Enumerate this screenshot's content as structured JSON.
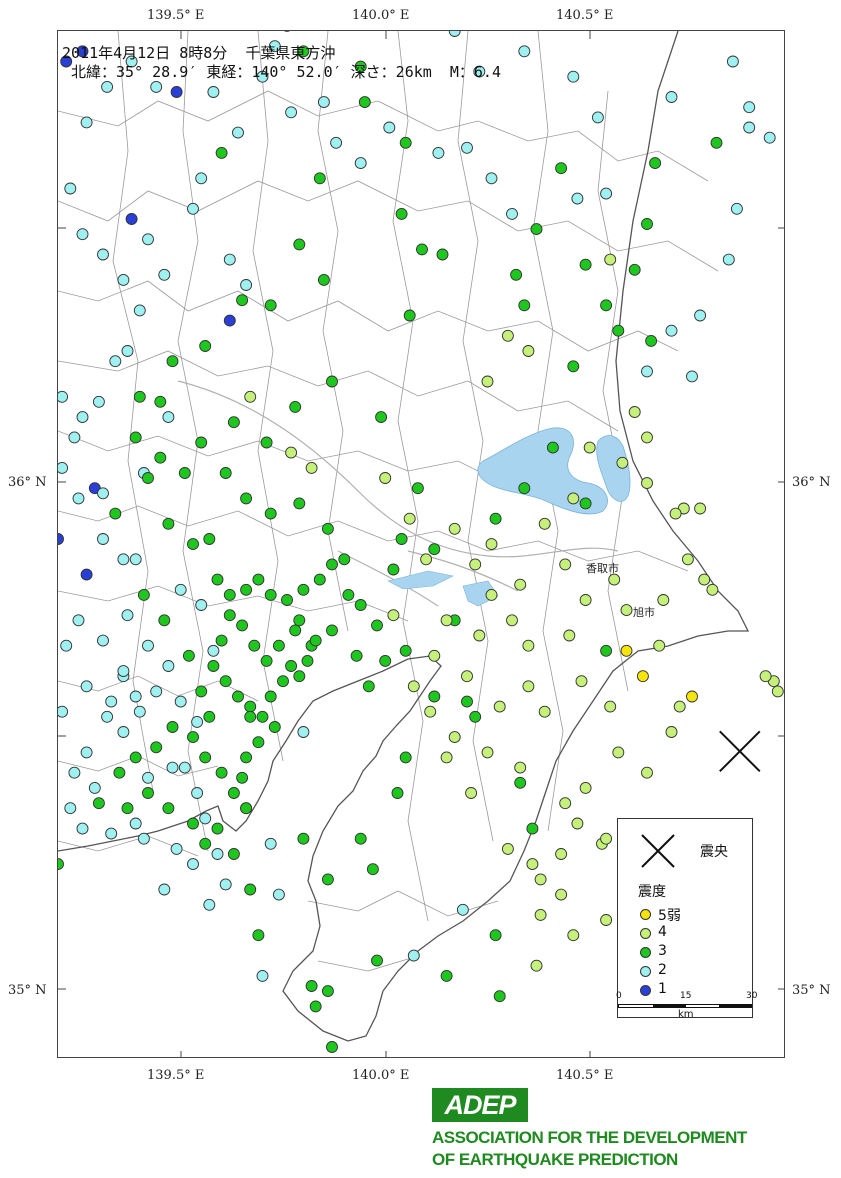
{
  "header": {
    "line1": "2011年4月12日 8時8分  千葉県東方沖",
    "line2": " 北緯：35° 28.9′ 東経：140° 52.0′ 深さ：26km  M：6.4"
  },
  "axes": {
    "top_lon": [
      "139.5° E",
      "140.0° E",
      "140.5° E"
    ],
    "bottom_lon": [
      "139.5° E",
      "140.0° E",
      "140.5° E"
    ],
    "left_lat": [
      "36° N",
      "35° N"
    ],
    "right_lat": [
      "36° N",
      "35° N"
    ]
  },
  "places": [
    "香取市",
    "旭市"
  ],
  "legend": {
    "epicenter_label": "震央",
    "intensity_title": "震度",
    "items": [
      {
        "label": "5弱",
        "color": "#f5e50a"
      },
      {
        "label": "4",
        "color": "#c5f07a"
      },
      {
        "label": "3",
        "color": "#1ec71e"
      },
      {
        "label": "2",
        "color": "#9ff0f0"
      },
      {
        "label": "1",
        "color": "#2a3fd6"
      }
    ],
    "scale_ticks": [
      "0",
      "15",
      "30"
    ],
    "scale_unit": "km"
  },
  "footer": {
    "logo": "ADEP",
    "line1": "ASSOCIATION  FOR THE DEVELOPMENT",
    "line2": "OF EARTHQUAKE PREDICTION"
  },
  "colors": {
    "shindo_5_lower": "#f5e50a",
    "shindo_4": "#c5f07a",
    "shindo_3": "#1ec71e",
    "shindo_2": "#9ff0f0",
    "shindo_1": "#2a3fd6",
    "lake": "#a8d4f0",
    "brand": "#1f8a1f"
  },
  "epicenter": {
    "lon": 140.867,
    "lat": 35.482
  },
  "stations": {
    "5-": [
      [
        140.63,
        35.63
      ],
      [
        140.59,
        35.68
      ],
      [
        140.75,
        35.59
      ]
    ],
    "4": [
      [
        140.3,
        36.3
      ],
      [
        140.25,
        36.21
      ],
      [
        140.35,
        36.27
      ],
      [
        140.55,
        36.45
      ],
      [
        140.61,
        36.15
      ],
      [
        140.64,
        36.1
      ],
      [
        140.73,
        35.96
      ],
      [
        140.77,
        35.96
      ],
      [
        140.8,
        35.8
      ],
      [
        140.78,
        35.82
      ],
      [
        140.74,
        35.86
      ],
      [
        140.71,
        35.95
      ],
      [
        140.95,
        35.62
      ],
      [
        140.96,
        35.6
      ],
      [
        140.93,
        35.63
      ],
      [
        140.45,
        35.71
      ],
      [
        140.48,
        35.62
      ],
      [
        140.55,
        35.57
      ],
      [
        140.57,
        35.48
      ],
      [
        140.49,
        35.41
      ],
      [
        140.44,
        35.38
      ],
      [
        140.53,
        35.3
      ],
      [
        140.54,
        35.15
      ],
      [
        140.46,
        35.12
      ],
      [
        140.38,
        35.16
      ],
      [
        140.3,
        35.29
      ],
      [
        140.21,
        35.4
      ],
      [
        140.17,
        35.51
      ],
      [
        140.11,
        35.56
      ],
      [
        140.07,
        35.61
      ],
      [
        140.02,
        35.75
      ],
      [
        140.1,
        35.86
      ],
      [
        140.17,
        35.92
      ],
      [
        140.22,
        35.85
      ],
      [
        140.26,
        35.79
      ],
      [
        140.31,
        35.74
      ],
      [
        140.35,
        35.69
      ],
      [
        140.35,
        35.61
      ],
      [
        140.39,
        35.56
      ],
      [
        140.28,
        35.57
      ],
      [
        140.2,
        35.63
      ],
      [
        140.12,
        35.67
      ],
      [
        140.15,
        35.74
      ],
      [
        140.23,
        35.71
      ],
      [
        140.44,
        35.85
      ],
      [
        140.39,
        35.93
      ],
      [
        140.46,
        35.98
      ],
      [
        140.5,
        36.08
      ],
      [
        140.58,
        36.05
      ],
      [
        140.64,
        36.01
      ],
      [
        140.68,
        35.78
      ],
      [
        140.59,
        35.76
      ],
      [
        140.56,
        35.82
      ],
      [
        140.49,
        35.78
      ],
      [
        140.33,
        35.81
      ],
      [
        140.26,
        35.89
      ],
      [
        140.06,
        35.94
      ],
      [
        140.0,
        36.02
      ],
      [
        139.82,
        36.04
      ],
      [
        139.77,
        36.07
      ],
      [
        139.67,
        36.18
      ],
      [
        140.33,
        35.45
      ],
      [
        140.25,
        35.48
      ],
      [
        140.15,
        35.47
      ],
      [
        140.36,
        35.26
      ],
      [
        140.43,
        35.2
      ],
      [
        140.37,
        35.06
      ],
      [
        140.38,
        35.23
      ],
      [
        140.43,
        35.28
      ],
      [
        140.47,
        35.34
      ],
      [
        140.54,
        35.31
      ],
      [
        140.67,
        35.69
      ],
      [
        140.7,
        35.52
      ],
      [
        140.72,
        35.57
      ],
      [
        140.64,
        35.44
      ]
    ],
    "3": [
      [
        139.6,
        36.66
      ],
      [
        139.8,
        36.86
      ],
      [
        139.76,
        36.91
      ],
      [
        139.84,
        36.61
      ],
      [
        139.94,
        36.83
      ],
      [
        139.95,
        36.76
      ],
      [
        140.05,
        36.68
      ],
      [
        140.04,
        36.54
      ],
      [
        140.06,
        36.34
      ],
      [
        140.09,
        36.47
      ],
      [
        140.14,
        36.46
      ],
      [
        140.32,
        36.42
      ],
      [
        140.34,
        36.36
      ],
      [
        140.37,
        36.51
      ],
      [
        140.43,
        36.63
      ],
      [
        140.49,
        36.44
      ],
      [
        140.54,
        36.36
      ],
      [
        140.64,
        36.52
      ],
      [
        140.66,
        36.64
      ],
      [
        140.81,
        36.68
      ],
      [
        140.65,
        36.29
      ],
      [
        139.65,
        36.37
      ],
      [
        139.79,
        36.48
      ],
      [
        139.85,
        36.41
      ],
      [
        139.72,
        36.36
      ],
      [
        139.56,
        36.28
      ],
      [
        139.48,
        36.25
      ],
      [
        139.45,
        36.17
      ],
      [
        139.39,
        36.1
      ],
      [
        139.42,
        36.02
      ],
      [
        139.47,
        35.93
      ],
      [
        139.53,
        35.89
      ],
      [
        139.59,
        35.82
      ],
      [
        139.57,
        35.9
      ],
      [
        139.61,
        36.03
      ],
      [
        139.66,
        35.98
      ],
      [
        139.72,
        35.95
      ],
      [
        139.79,
        35.97
      ],
      [
        139.86,
        35.92
      ],
      [
        139.87,
        35.85
      ],
      [
        139.91,
        35.79
      ],
      [
        139.94,
        35.77
      ],
      [
        139.98,
        35.73
      ],
      [
        140.0,
        35.66
      ],
      [
        140.05,
        35.68
      ],
      [
        139.96,
        35.61
      ],
      [
        139.93,
        35.67
      ],
      [
        139.87,
        35.72
      ],
      [
        139.82,
        35.69
      ],
      [
        139.78,
        35.72
      ],
      [
        139.74,
        35.69
      ],
      [
        139.71,
        35.66
      ],
      [
        139.68,
        35.69
      ],
      [
        139.65,
        35.73
      ],
      [
        139.62,
        35.75
      ],
      [
        139.6,
        35.7
      ],
      [
        139.58,
        35.65
      ],
      [
        139.61,
        35.62
      ],
      [
        139.64,
        35.59
      ],
      [
        139.67,
        35.57
      ],
      [
        139.7,
        35.55
      ],
      [
        139.72,
        35.59
      ],
      [
        139.75,
        35.62
      ],
      [
        139.77,
        35.65
      ],
      [
        139.79,
        35.63
      ],
      [
        139.81,
        35.66
      ],
      [
        139.83,
        35.7
      ],
      [
        139.79,
        35.74
      ],
      [
        139.76,
        35.78
      ],
      [
        139.72,
        35.79
      ],
      [
        139.69,
        35.82
      ],
      [
        139.66,
        35.8
      ],
      [
        139.62,
        35.79
      ],
      [
        139.73,
        35.53
      ],
      [
        139.69,
        35.5
      ],
      [
        139.66,
        35.47
      ],
      [
        139.65,
        35.43
      ],
      [
        139.63,
        35.4
      ],
      [
        139.66,
        35.37
      ],
      [
        139.6,
        35.44
      ],
      [
        139.56,
        35.47
      ],
      [
        139.53,
        35.51
      ],
      [
        139.48,
        35.53
      ],
      [
        139.44,
        35.49
      ],
      [
        139.39,
        35.47
      ],
      [
        139.35,
        35.44
      ],
      [
        139.3,
        35.38
      ],
      [
        139.2,
        35.26
      ],
      [
        139.37,
        35.37
      ],
      [
        139.42,
        35.4
      ],
      [
        139.47,
        35.37
      ],
      [
        139.53,
        35.34
      ],
      [
        139.56,
        35.3
      ],
      [
        139.59,
        35.33
      ],
      [
        139.63,
        35.28
      ],
      [
        139.67,
        35.21
      ],
      [
        139.69,
        35.12
      ],
      [
        139.8,
        35.31
      ],
      [
        139.86,
        35.23
      ],
      [
        139.82,
        35.02
      ],
      [
        139.83,
        34.98
      ],
      [
        139.86,
        35.01
      ],
      [
        139.87,
        34.9
      ],
      [
        139.97,
        35.25
      ],
      [
        139.94,
        35.31
      ],
      [
        140.03,
        35.4
      ],
      [
        140.05,
        35.47
      ],
      [
        140.12,
        35.59
      ],
      [
        140.17,
        35.74
      ],
      [
        140.04,
        35.9
      ],
      [
        140.08,
        36.0
      ],
      [
        139.99,
        36.14
      ],
      [
        139.87,
        36.21
      ],
      [
        139.78,
        36.16
      ],
      [
        139.71,
        36.09
      ],
      [
        139.63,
        36.13
      ],
      [
        139.55,
        36.09
      ],
      [
        139.51,
        36.03
      ],
      [
        139.45,
        36.06
      ],
      [
        139.4,
        36.18
      ],
      [
        139.34,
        35.95
      ],
      [
        139.41,
        35.79
      ],
      [
        139.46,
        35.74
      ],
      [
        139.52,
        35.67
      ],
      [
        139.55,
        35.6
      ],
      [
        139.57,
        35.55
      ],
      [
        139.67,
        35.55
      ],
      [
        139.8,
        35.8
      ],
      [
        139.84,
        35.82
      ],
      [
        139.9,
        35.86
      ],
      [
        140.02,
        35.84
      ],
      [
        140.12,
        35.88
      ],
      [
        140.27,
        35.94
      ],
      [
        140.34,
        36.0
      ],
      [
        140.41,
        36.08
      ],
      [
        140.46,
        36.24
      ],
      [
        140.57,
        36.31
      ],
      [
        140.61,
        36.43
      ],
      [
        140.36,
        35.33
      ],
      [
        140.33,
        35.42
      ],
      [
        140.2,
        35.58
      ],
      [
        140.22,
        35.55
      ],
      [
        140.49,
        35.97
      ],
      [
        140.54,
        35.68
      ],
      [
        140.68,
        35.23
      ],
      [
        140.27,
        35.12
      ],
      [
        140.28,
        35.0
      ],
      [
        140.15,
        35.04
      ],
      [
        139.98,
        35.07
      ]
    ],
    "2": [
      [
        139.58,
        36.78
      ],
      [
        139.73,
        36.87
      ],
      [
        139.85,
        36.76
      ],
      [
        140.01,
        36.71
      ],
      [
        140.17,
        36.9
      ],
      [
        140.23,
        36.82
      ],
      [
        140.34,
        36.86
      ],
      [
        140.46,
        36.81
      ],
      [
        140.52,
        36.73
      ],
      [
        140.7,
        36.77
      ],
      [
        140.85,
        36.84
      ],
      [
        140.89,
        36.71
      ],
      [
        140.94,
        36.69
      ],
      [
        139.44,
        36.79
      ],
      [
        139.38,
        36.84
      ],
      [
        139.32,
        36.79
      ],
      [
        139.27,
        36.72
      ],
      [
        139.23,
        36.59
      ],
      [
        139.26,
        36.5
      ],
      [
        139.31,
        36.46
      ],
      [
        139.36,
        36.41
      ],
      [
        139.42,
        36.49
      ],
      [
        139.53,
        36.55
      ],
      [
        139.62,
        36.45
      ],
      [
        139.66,
        36.4
      ],
      [
        139.37,
        36.27
      ],
      [
        139.3,
        36.17
      ],
      [
        139.24,
        36.1
      ],
      [
        139.25,
        35.98
      ],
      [
        139.31,
        35.9
      ],
      [
        139.36,
        35.86
      ],
      [
        139.37,
        35.75
      ],
      [
        139.31,
        35.7
      ],
      [
        139.25,
        35.74
      ],
      [
        139.22,
        35.69
      ],
      [
        139.27,
        35.61
      ],
      [
        139.33,
        35.58
      ],
      [
        139.36,
        35.52
      ],
      [
        139.4,
        35.56
      ],
      [
        139.44,
        35.6
      ],
      [
        139.47,
        35.65
      ],
      [
        139.5,
        35.58
      ],
      [
        139.48,
        35.45
      ],
      [
        139.42,
        35.43
      ],
      [
        139.39,
        35.34
      ],
      [
        139.33,
        35.32
      ],
      [
        139.26,
        35.33
      ],
      [
        139.23,
        35.37
      ],
      [
        139.24,
        35.44
      ],
      [
        139.27,
        35.48
      ],
      [
        139.32,
        35.55
      ],
      [
        139.36,
        35.63
      ],
      [
        139.42,
        35.69
      ],
      [
        139.5,
        35.8
      ],
      [
        139.55,
        35.77
      ],
      [
        139.58,
        35.68
      ],
      [
        139.54,
        35.54
      ],
      [
        139.51,
        35.45
      ],
      [
        139.54,
        35.4
      ],
      [
        139.56,
        35.35
      ],
      [
        139.59,
        35.28
      ],
      [
        139.53,
        35.26
      ],
      [
        139.49,
        35.29
      ],
      [
        139.61,
        35.22
      ],
      [
        139.7,
        35.04
      ],
      [
        139.66,
        35.37
      ],
      [
        139.57,
        35.18
      ],
      [
        139.46,
        35.21
      ],
      [
        139.41,
        35.31
      ],
      [
        139.29,
        35.41
      ],
      [
        139.39,
        35.86
      ],
      [
        139.31,
        35.99
      ],
      [
        139.21,
        36.04
      ],
      [
        139.26,
        36.14
      ],
      [
        139.21,
        36.18
      ],
      [
        139.34,
        36.25
      ],
      [
        139.4,
        36.35
      ],
      [
        139.46,
        36.42
      ],
      [
        139.55,
        36.61
      ],
      [
        139.64,
        36.7
      ],
      [
        139.7,
        36.81
      ],
      [
        139.77,
        36.74
      ],
      [
        139.88,
        36.68
      ],
      [
        139.94,
        36.64
      ],
      [
        140.13,
        36.66
      ],
      [
        140.2,
        36.67
      ],
      [
        140.26,
        36.61
      ],
      [
        140.31,
        36.54
      ],
      [
        140.47,
        36.57
      ],
      [
        140.54,
        36.58
      ],
      [
        140.89,
        36.75
      ],
      [
        140.86,
        36.55
      ],
      [
        140.84,
        36.45
      ],
      [
        140.77,
        36.34
      ],
      [
        140.75,
        36.22
      ],
      [
        140.64,
        36.23
      ],
      [
        140.7,
        36.31
      ],
      [
        140.07,
        35.08
      ],
      [
        140.19,
        35.17
      ],
      [
        139.8,
        35.52
      ],
      [
        139.72,
        35.3
      ],
      [
        139.74,
        35.2
      ],
      [
        139.36,
        35.64
      ],
      [
        139.39,
        35.59
      ],
      [
        139.21,
        35.56
      ],
      [
        139.41,
        36.03
      ],
      [
        139.47,
        36.14
      ]
    ],
    "1": [
      [
        139.26,
        36.86
      ],
      [
        139.22,
        36.84
      ],
      [
        139.49,
        36.78
      ],
      [
        139.38,
        36.53
      ],
      [
        139.62,
        36.33
      ],
      [
        139.29,
        36.0
      ],
      [
        139.27,
        35.83
      ],
      [
        139.2,
        35.9
      ]
    ]
  }
}
